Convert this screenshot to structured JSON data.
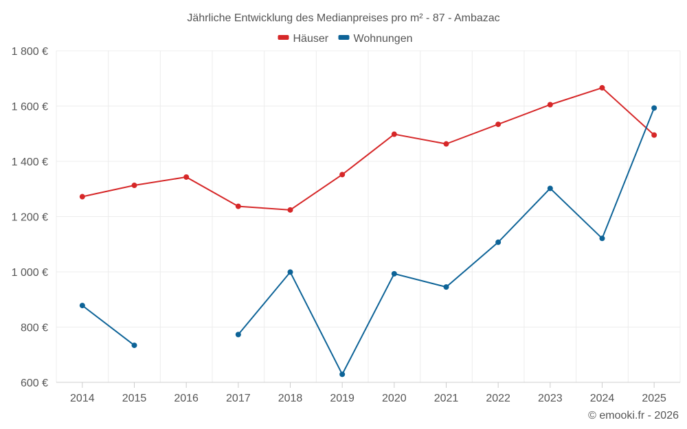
{
  "chart_data": {
    "type": "line",
    "title": "Jährliche Entwicklung des Medianpreises pro m² - 87 - Ambazac",
    "xlabel": "",
    "ylabel": "",
    "categories": [
      "2014",
      "2015",
      "2016",
      "2017",
      "2018",
      "2019",
      "2020",
      "2021",
      "2022",
      "2023",
      "2024",
      "2025"
    ],
    "ylim": [
      600,
      1800
    ],
    "yticks": [
      600,
      800,
      1000,
      1200,
      1400,
      1600,
      1800
    ],
    "ytick_labels": [
      "600 €",
      "800 €",
      "1 000 €",
      "1 200 €",
      "1 400 €",
      "1 600 €",
      "1 800 €"
    ],
    "grid": true,
    "legend_position": "top-center",
    "series": [
      {
        "name": "Häuser",
        "color": "#d62728",
        "values": [
          1272,
          1313,
          1343,
          1237,
          1224,
          1352,
          1498,
          1463,
          1534,
          1605,
          1666,
          1495
        ]
      },
      {
        "name": "Wohnungen",
        "color": "#0d6397",
        "values": [
          878,
          734,
          null,
          773,
          999,
          629,
          993,
          945,
          1107,
          1302,
          1121,
          1593
        ]
      }
    ],
    "credit": "© emooki.fr - 2026"
  }
}
